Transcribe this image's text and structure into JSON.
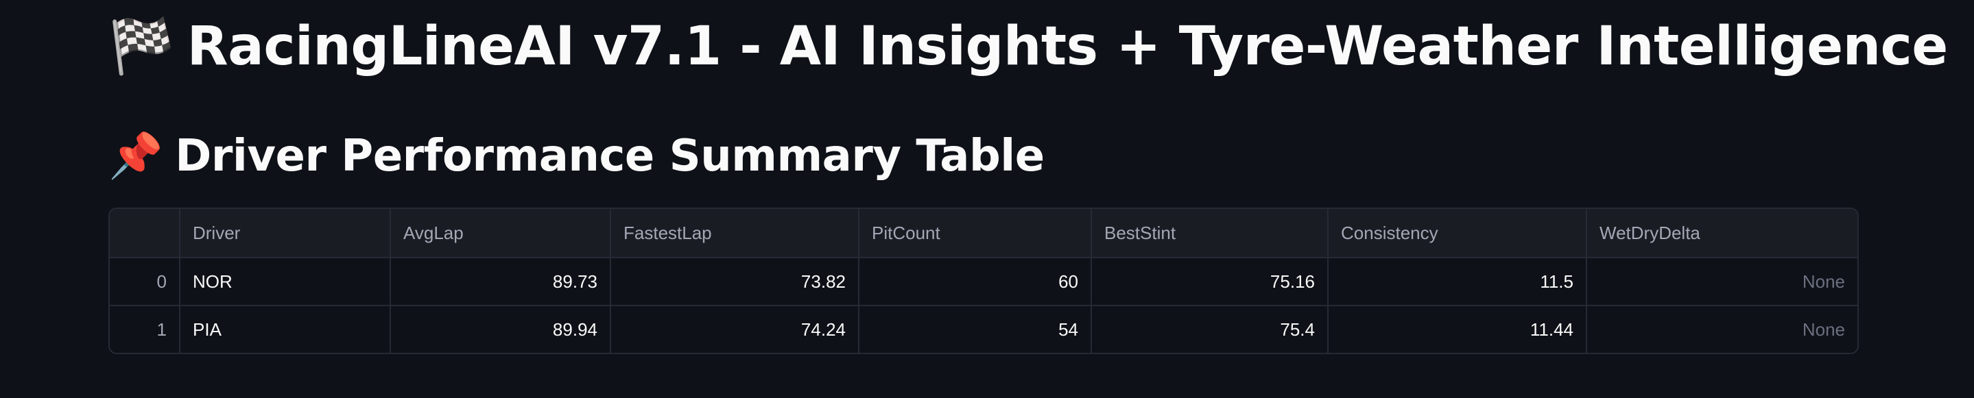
{
  "header": {
    "title_emoji": "🏁",
    "title": "RacingLineAI v7.1 - AI Insights + Tyre-Weather Intelligence"
  },
  "section": {
    "emoji": "📌",
    "title": "Driver Performance Summary Table"
  },
  "table": {
    "columns": [
      "",
      "Driver",
      "AvgLap",
      "FastestLap",
      "PitCount",
      "BestStint",
      "Consistency",
      "WetDryDelta"
    ],
    "rows": [
      [
        "0",
        "NOR",
        "89.73",
        "73.82",
        "60",
        "75.16",
        "11.5",
        "None"
      ],
      [
        "1",
        "PIA",
        "89.94",
        "74.24",
        "54",
        "75.4",
        "11.44",
        "None"
      ]
    ]
  },
  "colors": {
    "background": "#0e1117",
    "header_bg": "#1a1c24",
    "border": "#262a34",
    "text": "#fafafa",
    "muted": "#a3a8b4"
  }
}
